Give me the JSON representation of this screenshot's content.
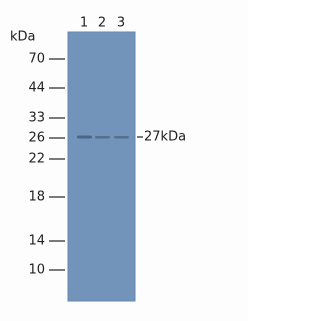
{
  "unit_label": "kDa",
  "lanes": [
    "1",
    "2",
    "3"
  ],
  "markers": [
    "70",
    "44",
    "33",
    "26",
    "22",
    "18",
    "14",
    "10"
  ],
  "band_label": "27kDa"
}
